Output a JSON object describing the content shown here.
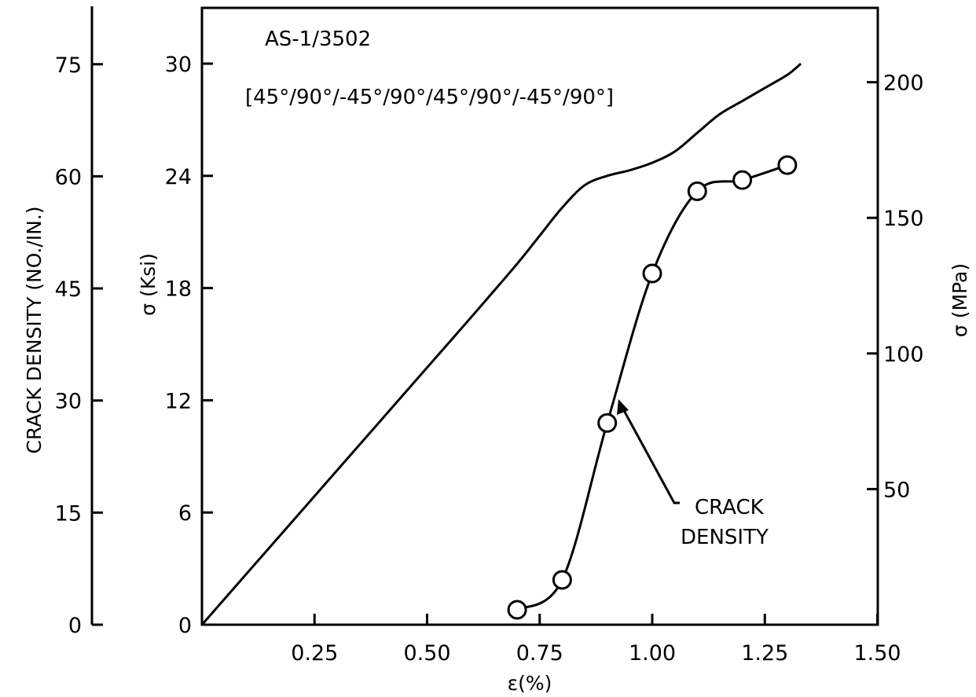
{
  "chart_data": {
    "type": "line",
    "annotations": {
      "material": "AS-1/3502",
      "layup": "[45°/90°/-45°/90°/45°/90°/-45°/90°]",
      "crack_density_label_line1": "CRACK",
      "crack_density_label_line2": "DENSITY"
    },
    "x_axis": {
      "label": "ε(%)",
      "range": [
        0,
        1.5
      ],
      "ticks": [
        "0.25",
        "0.50",
        "0.75",
        "1.00",
        "1.25",
        "1.50"
      ]
    },
    "y_axis_left": {
      "label": "σ (Ksi)",
      "range": [
        0,
        30
      ],
      "ticks": [
        "0",
        "6",
        "12",
        "18",
        "24",
        "30"
      ]
    },
    "y_axis_right": {
      "label": "σ (MPa)",
      "ticks": [
        "50",
        "100",
        "150",
        "200"
      ]
    },
    "y_axis_crack": {
      "label": "CRACK DENSITY (NO./IN.)",
      "range": [
        0,
        75
      ],
      "ticks": [
        "0",
        "15",
        "30",
        "45",
        "60",
        "75"
      ]
    },
    "series": [
      {
        "type": "line",
        "axis": "stress_ksi",
        "x": [
          0,
          0.1,
          0.2,
          0.3,
          0.4,
          0.5,
          0.6,
          0.7,
          0.75,
          0.8,
          0.85,
          0.9,
          0.95,
          1.0,
          1.05,
          1.1,
          1.15,
          1.2,
          1.25,
          1.3,
          1.33
        ],
        "y": [
          0,
          2.75,
          5.5,
          8.25,
          11.0,
          13.75,
          16.5,
          19.3,
          20.8,
          22.3,
          23.5,
          24.0,
          24.3,
          24.7,
          25.3,
          26.3,
          27.3,
          28.0,
          28.7,
          29.4,
          30.0
        ]
      },
      {
        "type": "scatter",
        "axis": "crack_density",
        "x": [
          0.7,
          0.8,
          0.9,
          1.0,
          1.1,
          1.2,
          1.3
        ],
        "y": [
          2,
          6,
          27,
          47,
          58,
          59.5,
          61.5
        ]
      }
    ]
  }
}
